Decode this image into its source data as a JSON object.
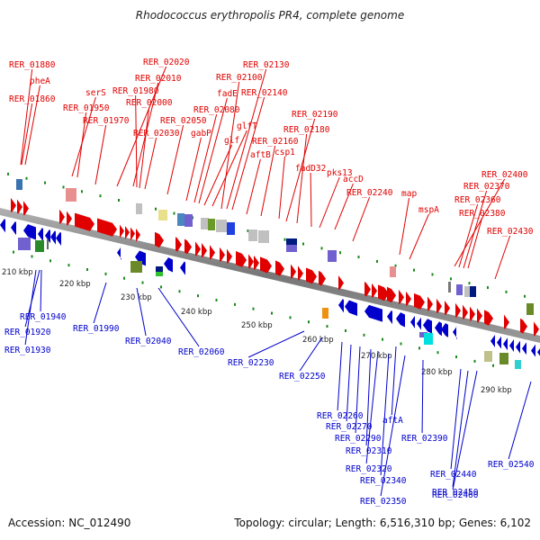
{
  "title": "Rhodococcus erythropolis PR4, complete genome",
  "footer": {
    "accession": "Accession: NC_012490",
    "summary": "Topology: circular; Length: 6,516,310 bp; Genes: 6,102"
  },
  "colors": {
    "forward": "#e00000",
    "reverse": "#0000cc",
    "backbone": "#888888",
    "tick": "#1a8a1a"
  },
  "ticks": [
    {
      "label": "210 kbp",
      "kbp": 210
    },
    {
      "label": "220 kbp",
      "kbp": 220
    },
    {
      "label": "230 kbp",
      "kbp": 230
    },
    {
      "label": "240 kbp",
      "kbp": 240
    },
    {
      "label": "250 kbp",
      "kbp": 250
    },
    {
      "label": "260 kbp",
      "kbp": 260
    },
    {
      "label": "270 kbp",
      "kbp": 270
    },
    {
      "label": "280 kbp",
      "kbp": 280
    },
    {
      "label": "290 kbp",
      "kbp": 290
    }
  ],
  "forward_labels": [
    "RER_01880",
    "pheA",
    "RER_01860",
    "serS",
    "RER_01950",
    "RER_01970",
    "RER_02020",
    "RER_02010",
    "RER_01980",
    "RER_02000",
    "RER_02030",
    "RER_02050",
    "gabP",
    "RER_02080",
    "fadE",
    "glf",
    "glfT",
    "RER_02100",
    "RER_02130",
    "RER_02140",
    "aftB",
    "RER_02160",
    "csp1",
    "RER_02190",
    "RER_02180",
    "fadD32",
    "pks13",
    "accD",
    "RER_02240",
    "map",
    "mspA",
    "RER_02400",
    "RER_02370",
    "RER_02360",
    "RER_02380",
    "RER_02430"
  ],
  "reverse_labels": [
    "RER_01940",
    "RER_01920",
    "RER_01930",
    "RER_01990",
    "RER_02040",
    "RER_02060",
    "RER_02230",
    "RER_02250",
    "RER_02260",
    "RER_02270",
    "aftA",
    "RER_02290",
    "RER_02310",
    "RER_02320",
    "RER_02340",
    "RER_02350",
    "RER_02390",
    "RER_02440",
    "RER_02450",
    "RER_02460",
    "RER_02540"
  ]
}
